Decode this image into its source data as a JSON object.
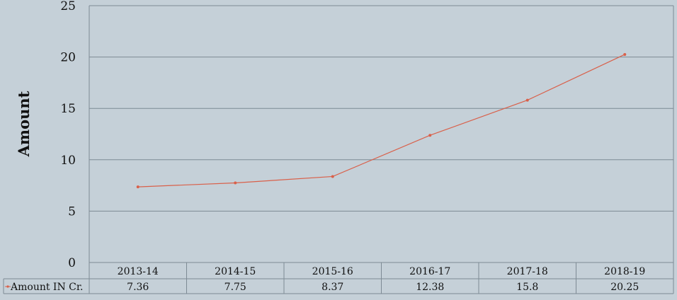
{
  "chart_data": {
    "type": "line",
    "ylabel": "Amount",
    "ylim": [
      0,
      25
    ],
    "yticks": [
      0,
      5,
      10,
      15,
      20,
      25
    ],
    "grid": true,
    "categories": [
      "2013-14",
      "2014-15",
      "2015-16",
      "2016-17",
      "2017-18",
      "2018-19"
    ],
    "series": [
      {
        "name": "Amount IN Cr.",
        "values": [
          7.36,
          7.75,
          8.37,
          12.38,
          15.8,
          20.25
        ],
        "value_labels": [
          "7.36",
          "7.75",
          "8.37",
          "12.38",
          "15.8",
          "20.25"
        ],
        "color": "#d9604a"
      }
    ],
    "data_table": true
  },
  "colors": {
    "background": "#c5d0d8",
    "gridline": "#7d8a94",
    "series": "#d9604a"
  }
}
